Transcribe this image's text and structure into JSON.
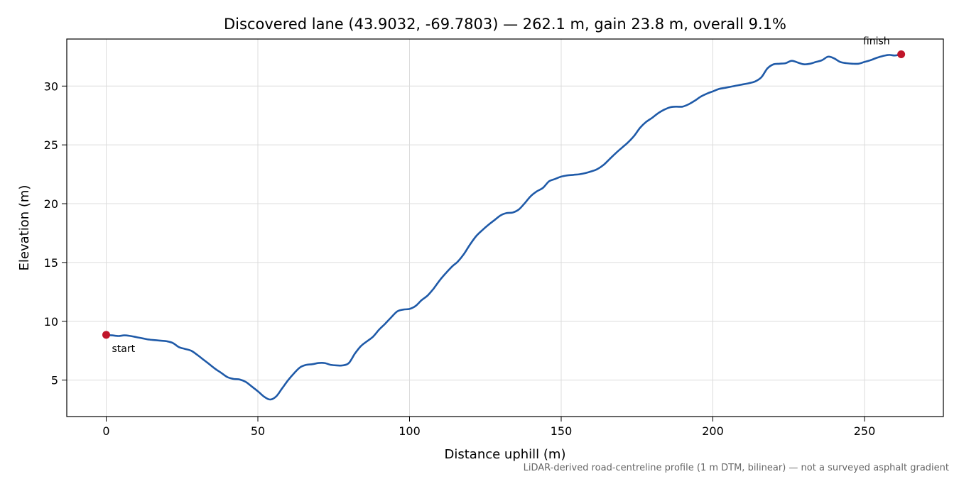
{
  "chart_data": {
    "type": "line",
    "title": "Discovered lane (43.9032, -69.7803) — 262.1 m, gain 23.8 m, overall 9.1%",
    "xlabel": "Distance uphill (m)",
    "ylabel": "Elevation (m)",
    "xlim": [
      -13,
      276
    ],
    "ylim": [
      1.9,
      34.0
    ],
    "xticks": [
      0,
      50,
      100,
      150,
      200,
      250
    ],
    "yticks": [
      5,
      10,
      15,
      20,
      25,
      30
    ],
    "grid": true,
    "legend": "none",
    "series": [
      {
        "color": "#1f5aa8",
        "x": [
          0,
          2,
          4,
          6,
          8,
          10,
          12,
          14,
          16,
          18,
          20,
          22,
          24,
          26,
          28,
          30,
          32,
          34,
          36,
          38,
          40,
          42,
          44,
          46,
          48,
          50,
          52,
          54,
          56,
          58,
          60,
          62,
          64,
          66,
          68,
          70,
          72,
          74,
          76,
          78,
          80,
          82,
          84,
          86,
          88,
          90,
          92,
          94,
          96,
          98,
          100,
          102,
          104,
          106,
          108,
          110,
          112,
          114,
          116,
          118,
          120,
          122,
          124,
          126,
          128,
          130,
          132,
          134,
          136,
          138,
          140,
          142,
          144,
          146,
          148,
          150,
          152,
          154,
          156,
          158,
          160,
          162,
          164,
          166,
          168,
          170,
          172,
          174,
          176,
          178,
          180,
          182,
          184,
          186,
          188,
          190,
          192,
          194,
          196,
          198,
          200,
          202,
          204,
          206,
          208,
          210,
          212,
          214,
          216,
          218,
          220,
          222,
          224,
          226,
          228,
          230,
          232,
          234,
          236,
          238,
          240,
          242,
          244,
          246,
          248,
          250,
          252,
          254,
          256,
          258,
          260,
          262.1
        ],
        "y": [
          8.85,
          8.8,
          8.75,
          8.8,
          8.75,
          8.65,
          8.55,
          8.45,
          8.4,
          8.35,
          8.3,
          8.15,
          7.8,
          7.65,
          7.5,
          7.15,
          6.75,
          6.35,
          5.95,
          5.6,
          5.25,
          5.1,
          5.05,
          4.85,
          4.45,
          4.05,
          3.6,
          3.35,
          3.6,
          4.3,
          5.0,
          5.6,
          6.1,
          6.3,
          6.35,
          6.45,
          6.45,
          6.3,
          6.25,
          6.25,
          6.45,
          7.25,
          7.9,
          8.3,
          8.7,
          9.3,
          9.8,
          10.35,
          10.85,
          11.0,
          11.05,
          11.3,
          11.8,
          12.2,
          12.8,
          13.5,
          14.1,
          14.65,
          15.1,
          15.75,
          16.55,
          17.25,
          17.75,
          18.2,
          18.6,
          19.0,
          19.2,
          19.25,
          19.5,
          20.05,
          20.65,
          21.05,
          21.35,
          21.9,
          22.1,
          22.3,
          22.4,
          22.45,
          22.5,
          22.6,
          22.75,
          22.95,
          23.3,
          23.8,
          24.3,
          24.75,
          25.2,
          25.75,
          26.45,
          26.95,
          27.3,
          27.7,
          28.0,
          28.2,
          28.25,
          28.25,
          28.45,
          28.75,
          29.1,
          29.35,
          29.55,
          29.75,
          29.85,
          29.95,
          30.05,
          30.15,
          30.25,
          30.4,
          30.75,
          31.5,
          31.85,
          31.9,
          31.95,
          32.15,
          32.0,
          31.85,
          31.9,
          32.05,
          32.2,
          32.5,
          32.35,
          32.05,
          31.95,
          31.9,
          31.9,
          32.05,
          32.2,
          32.4,
          32.55,
          32.65,
          32.6,
          32.7
        ]
      }
    ],
    "annotations": [
      {
        "label": "start",
        "x": 0,
        "y": 8.85
      },
      {
        "label": "finish",
        "x": 262.1,
        "y": 32.7
      }
    ],
    "marker_color": "#c0152a",
    "footnote": "LiDAR-derived road-centreline profile (1 m DTM, bilinear) — not a surveyed asphalt gradient"
  }
}
